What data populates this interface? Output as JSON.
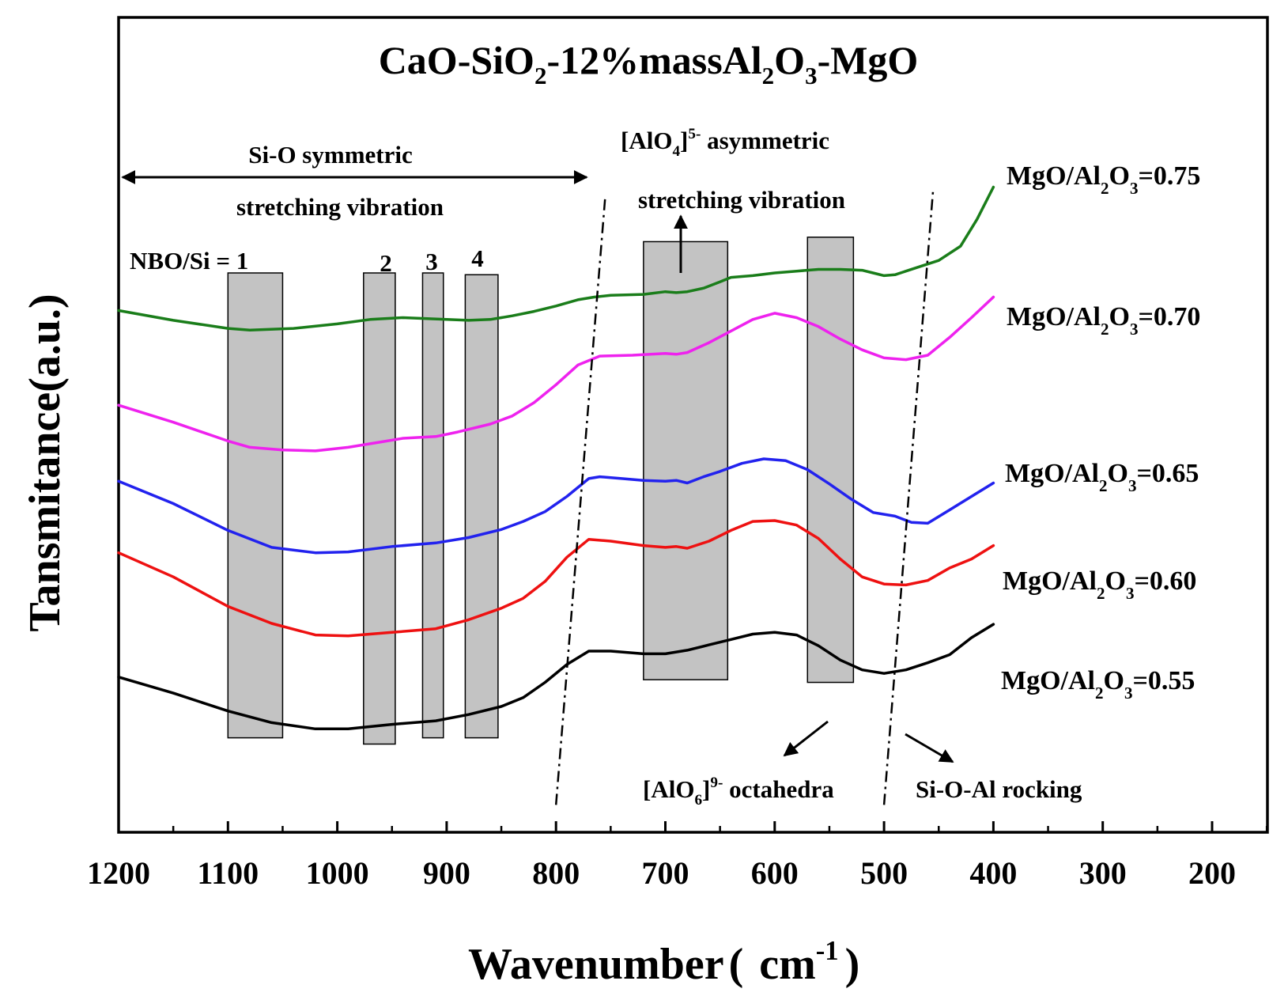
{
  "chart_data": {
    "type": "line",
    "title": {
      "p1": "CaO-SiO",
      "s1": "2",
      "p2": "-12%massAl",
      "s2": "2",
      "p3": "O",
      "s3": "3",
      "p4": "-MgO"
    },
    "xlabel": {
      "text": "Wavenumber",
      "paren_open": "(",
      "unit": "cm",
      "exp": "-1",
      "paren_close": ")"
    },
    "ylabel": "Tansmitance(a.u.)",
    "xlim": [
      1200,
      150
    ],
    "x_ticks": [
      "1200",
      "1100",
      "1000",
      "900",
      "800",
      "700",
      "600",
      "500",
      "400",
      "300",
      "200"
    ],
    "series": [
      {
        "name": "MgO/Al2O3=0.75",
        "label": {
          "a": "MgO/Al",
          "b": "2",
          "c": "O",
          "d": "3",
          "e": "=0.75"
        },
        "color": "#1a7d1a",
        "points": [
          [
            1200,
            -0.42
          ],
          [
            1150,
            -0.53
          ],
          [
            1100,
            -0.62
          ],
          [
            1080,
            -0.64
          ],
          [
            1040,
            -0.62
          ],
          [
            1000,
            -0.57
          ],
          [
            970,
            -0.52
          ],
          [
            940,
            -0.5
          ],
          [
            900,
            -0.52
          ],
          [
            880,
            -0.53
          ],
          [
            860,
            -0.52
          ],
          [
            840,
            -0.48
          ],
          [
            820,
            -0.43
          ],
          [
            800,
            -0.37
          ],
          [
            780,
            -0.3
          ],
          [
            765,
            -0.27
          ],
          [
            750,
            -0.25
          ],
          [
            720,
            -0.24
          ],
          [
            700,
            -0.21
          ],
          [
            690,
            -0.22
          ],
          [
            680,
            -0.21
          ],
          [
            665,
            -0.17
          ],
          [
            650,
            -0.1
          ],
          [
            640,
            -0.05
          ],
          [
            620,
            -0.03
          ],
          [
            600,
            0.0
          ],
          [
            580,
            0.02
          ],
          [
            560,
            0.04
          ],
          [
            540,
            0.04
          ],
          [
            520,
            0.03
          ],
          [
            510,
            0.0
          ],
          [
            500,
            -0.03
          ],
          [
            490,
            -0.02
          ],
          [
            470,
            0.06
          ],
          [
            450,
            0.14
          ],
          [
            430,
            0.3
          ],
          [
            415,
            0.6
          ],
          [
            400,
            0.96
          ]
        ]
      },
      {
        "name": "MgO/Al2O3=0.70",
        "label": {
          "a": "MgO/Al",
          "b": "2",
          "c": "O",
          "d": "3",
          "e": "=0.70"
        },
        "color": "#ee22ee",
        "points": [
          [
            1200,
            -1.48
          ],
          [
            1150,
            -1.67
          ],
          [
            1100,
            -1.88
          ],
          [
            1080,
            -1.95
          ],
          [
            1050,
            -1.98
          ],
          [
            1020,
            -1.99
          ],
          [
            990,
            -1.95
          ],
          [
            960,
            -1.89
          ],
          [
            940,
            -1.85
          ],
          [
            910,
            -1.83
          ],
          [
            890,
            -1.78
          ],
          [
            860,
            -1.69
          ],
          [
            840,
            -1.6
          ],
          [
            820,
            -1.45
          ],
          [
            800,
            -1.25
          ],
          [
            780,
            -1.03
          ],
          [
            760,
            -0.93
          ],
          [
            730,
            -0.92
          ],
          [
            700,
            -0.9
          ],
          [
            690,
            -0.91
          ],
          [
            680,
            -0.89
          ],
          [
            660,
            -0.78
          ],
          [
            640,
            -0.65
          ],
          [
            620,
            -0.52
          ],
          [
            600,
            -0.45
          ],
          [
            580,
            -0.5
          ],
          [
            560,
            -0.6
          ],
          [
            540,
            -0.74
          ],
          [
            520,
            -0.86
          ],
          [
            500,
            -0.95
          ],
          [
            480,
            -0.97
          ],
          [
            460,
            -0.92
          ],
          [
            440,
            -0.72
          ],
          [
            420,
            -0.5
          ],
          [
            400,
            -0.27
          ]
        ]
      },
      {
        "name": "MgO/Al2O3=0.65",
        "label": {
          "a": "MgO/Al",
          "b": "2",
          "c": "O",
          "d": "3",
          "e": "=0.65"
        },
        "color": "#2222ee",
        "points": [
          [
            1200,
            -2.33
          ],
          [
            1150,
            -2.58
          ],
          [
            1100,
            -2.88
          ],
          [
            1060,
            -3.07
          ],
          [
            1020,
            -3.13
          ],
          [
            990,
            -3.12
          ],
          [
            950,
            -3.06
          ],
          [
            910,
            -3.02
          ],
          [
            880,
            -2.96
          ],
          [
            850,
            -2.87
          ],
          [
            830,
            -2.78
          ],
          [
            810,
            -2.67
          ],
          [
            790,
            -2.5
          ],
          [
            770,
            -2.3
          ],
          [
            760,
            -2.28
          ],
          [
            740,
            -2.3
          ],
          [
            720,
            -2.32
          ],
          [
            700,
            -2.33
          ],
          [
            690,
            -2.32
          ],
          [
            680,
            -2.35
          ],
          [
            665,
            -2.28
          ],
          [
            650,
            -2.22
          ],
          [
            630,
            -2.13
          ],
          [
            610,
            -2.08
          ],
          [
            590,
            -2.1
          ],
          [
            570,
            -2.2
          ],
          [
            550,
            -2.36
          ],
          [
            530,
            -2.53
          ],
          [
            510,
            -2.68
          ],
          [
            490,
            -2.72
          ],
          [
            475,
            -2.79
          ],
          [
            460,
            -2.8
          ],
          [
            440,
            -2.65
          ],
          [
            420,
            -2.5
          ],
          [
            400,
            -2.35
          ]
        ]
      },
      {
        "name": "MgO/Al2O3=0.60",
        "label": {
          "a": "MgO/Al",
          "b": "2",
          "c": "O",
          "d": "3",
          "e": "=0.60"
        },
        "color": "#ee1111",
        "points": [
          [
            1200,
            -3.13
          ],
          [
            1150,
            -3.4
          ],
          [
            1100,
            -3.73
          ],
          [
            1060,
            -3.92
          ],
          [
            1020,
            -4.05
          ],
          [
            990,
            -4.06
          ],
          [
            950,
            -4.02
          ],
          [
            910,
            -3.98
          ],
          [
            880,
            -3.88
          ],
          [
            850,
            -3.75
          ],
          [
            830,
            -3.64
          ],
          [
            810,
            -3.45
          ],
          [
            790,
            -3.18
          ],
          [
            770,
            -2.98
          ],
          [
            750,
            -3.0
          ],
          [
            720,
            -3.05
          ],
          [
            700,
            -3.07
          ],
          [
            690,
            -3.06
          ],
          [
            680,
            -3.08
          ],
          [
            660,
            -3.0
          ],
          [
            640,
            -2.88
          ],
          [
            620,
            -2.78
          ],
          [
            600,
            -2.77
          ],
          [
            580,
            -2.82
          ],
          [
            560,
            -2.97
          ],
          [
            540,
            -3.2
          ],
          [
            520,
            -3.4
          ],
          [
            500,
            -3.48
          ],
          [
            480,
            -3.49
          ],
          [
            460,
            -3.44
          ],
          [
            440,
            -3.3
          ],
          [
            420,
            -3.2
          ],
          [
            400,
            -3.05
          ]
        ]
      },
      {
        "name": "MgO/Al2O3=0.55",
        "label": {
          "a": "MgO/Al",
          "b": "2",
          "c": "O",
          "d": "3",
          "e": "=0.55"
        },
        "color": "#000000",
        "points": [
          [
            1200,
            -4.52
          ],
          [
            1150,
            -4.7
          ],
          [
            1100,
            -4.9
          ],
          [
            1060,
            -5.03
          ],
          [
            1020,
            -5.1
          ],
          [
            990,
            -5.1
          ],
          [
            950,
            -5.05
          ],
          [
            910,
            -5.01
          ],
          [
            880,
            -4.94
          ],
          [
            850,
            -4.85
          ],
          [
            830,
            -4.75
          ],
          [
            810,
            -4.58
          ],
          [
            790,
            -4.38
          ],
          [
            770,
            -4.23
          ],
          [
            750,
            -4.23
          ],
          [
            720,
            -4.26
          ],
          [
            700,
            -4.26
          ],
          [
            680,
            -4.22
          ],
          [
            660,
            -4.16
          ],
          [
            640,
            -4.1
          ],
          [
            620,
            -4.04
          ],
          [
            600,
            -4.02
          ],
          [
            580,
            -4.05
          ],
          [
            560,
            -4.17
          ],
          [
            540,
            -4.33
          ],
          [
            520,
            -4.44
          ],
          [
            500,
            -4.48
          ],
          [
            480,
            -4.44
          ],
          [
            460,
            -4.36
          ],
          [
            440,
            -4.27
          ],
          [
            420,
            -4.08
          ],
          [
            400,
            -3.93
          ]
        ]
      }
    ],
    "shaded_bands": [
      {
        "name": "band-nbo-1",
        "x": [
          1100,
          1050
        ],
        "y": [
          -5.2,
          0.0
        ]
      },
      {
        "name": "band-nbo-2",
        "x": [
          976,
          947
        ],
        "y": [
          -5.27,
          0.0
        ]
      },
      {
        "name": "band-nbo-3",
        "x": [
          922,
          903
        ],
        "y": [
          -5.2,
          0.0
        ]
      },
      {
        "name": "band-nbo-4",
        "x": [
          883,
          853
        ],
        "y": [
          -5.2,
          -0.02
        ]
      },
      {
        "name": "band-alo4",
        "x": [
          720,
          643
        ],
        "y": [
          -4.55,
          0.35
        ]
      },
      {
        "name": "band-alo6",
        "x": [
          570,
          528
        ],
        "y": [
          -4.58,
          0.4
        ]
      }
    ],
    "dashdot_lines": [
      {
        "name": "boundary-line-alo4",
        "from": [
          800,
          -5.95
        ],
        "to": [
          755,
          0.85
        ]
      },
      {
        "name": "boundary-line-sioal",
        "from": [
          500,
          -5.95
        ],
        "to": [
          455,
          0.95
        ]
      }
    ],
    "nbo_labels": [
      "NBO/Si = 1",
      "2",
      "3",
      "4"
    ],
    "annotations": {
      "si_o_line1": "Si-O symmetric",
      "si_o_line2": "stretching vibration",
      "alo4_a": "[AlO",
      "alo4_b": "4",
      "alo4_c": "]",
      "alo4_d": "5-",
      "alo4_e": " asymmetric",
      "alo4_line2": "stretching vibration",
      "alo6_a": "[AlO",
      "alo6_b": "6",
      "alo6_c": "]",
      "alo6_d": "9-",
      "alo6_e": " octahedra",
      "rocking": "Si-O-Al rocking"
    }
  }
}
